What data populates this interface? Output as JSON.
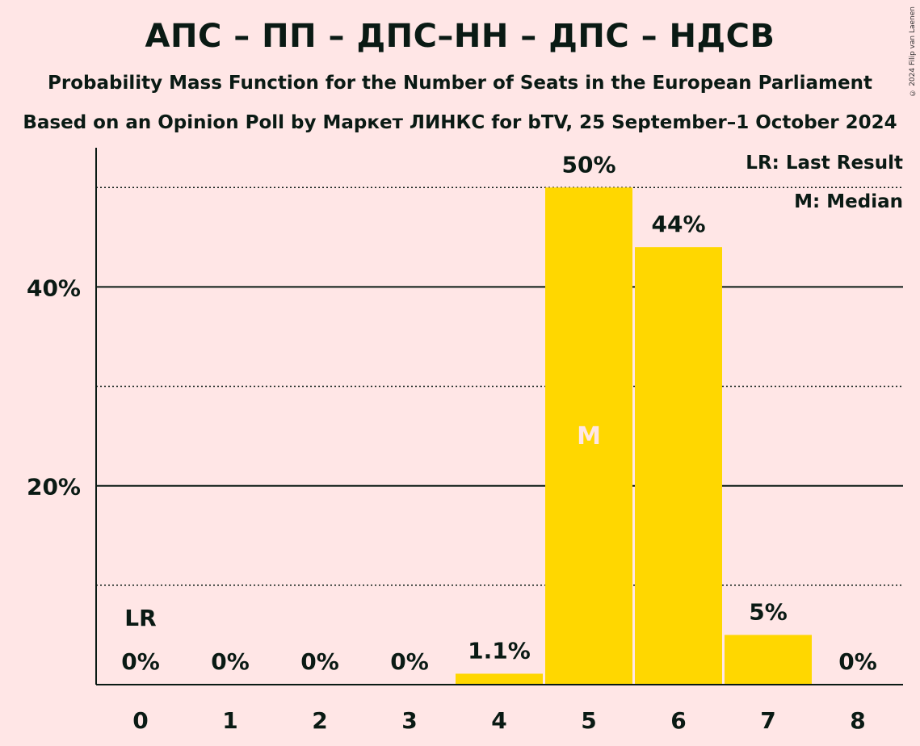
{
  "title": "АПС – ПП – ДПС–НН – ДПС – НДСВ",
  "subtitle": "Probability Mass Function for the Number of Seats in the European Parliament",
  "source": "Based on an Opinion Poll by Маркет ЛИНКС for bTV, 25 September–1 October 2024",
  "copyright": "© 2024 Filip van Laenen",
  "legend": {
    "last_result": "LR: Last Result",
    "median": "M: Median"
  },
  "colors": {
    "background": "#FFE6E6",
    "bar": "#FFD700",
    "text": "#0A1A14"
  },
  "chart_data": {
    "type": "bar",
    "categories": [
      "0",
      "1",
      "2",
      "3",
      "4",
      "5",
      "6",
      "7",
      "8"
    ],
    "values": [
      0,
      0,
      0,
      0,
      1.1,
      50,
      44,
      5,
      0
    ],
    "data_labels": [
      "0%",
      "0%",
      "0%",
      "0%",
      "1.1%",
      "50%",
      "44%",
      "5%",
      "0%"
    ],
    "ylim": [
      0,
      54
    ],
    "y_ticks": [
      {
        "value": 20,
        "label": "20%"
      },
      {
        "value": 40,
        "label": "40%"
      }
    ],
    "dotted_gridlines": [
      10,
      30,
      50
    ],
    "last_result_seat": "0",
    "last_result_marker": "LR",
    "median_seat": "5",
    "median_marker": "M",
    "legend_position": "top-right"
  }
}
